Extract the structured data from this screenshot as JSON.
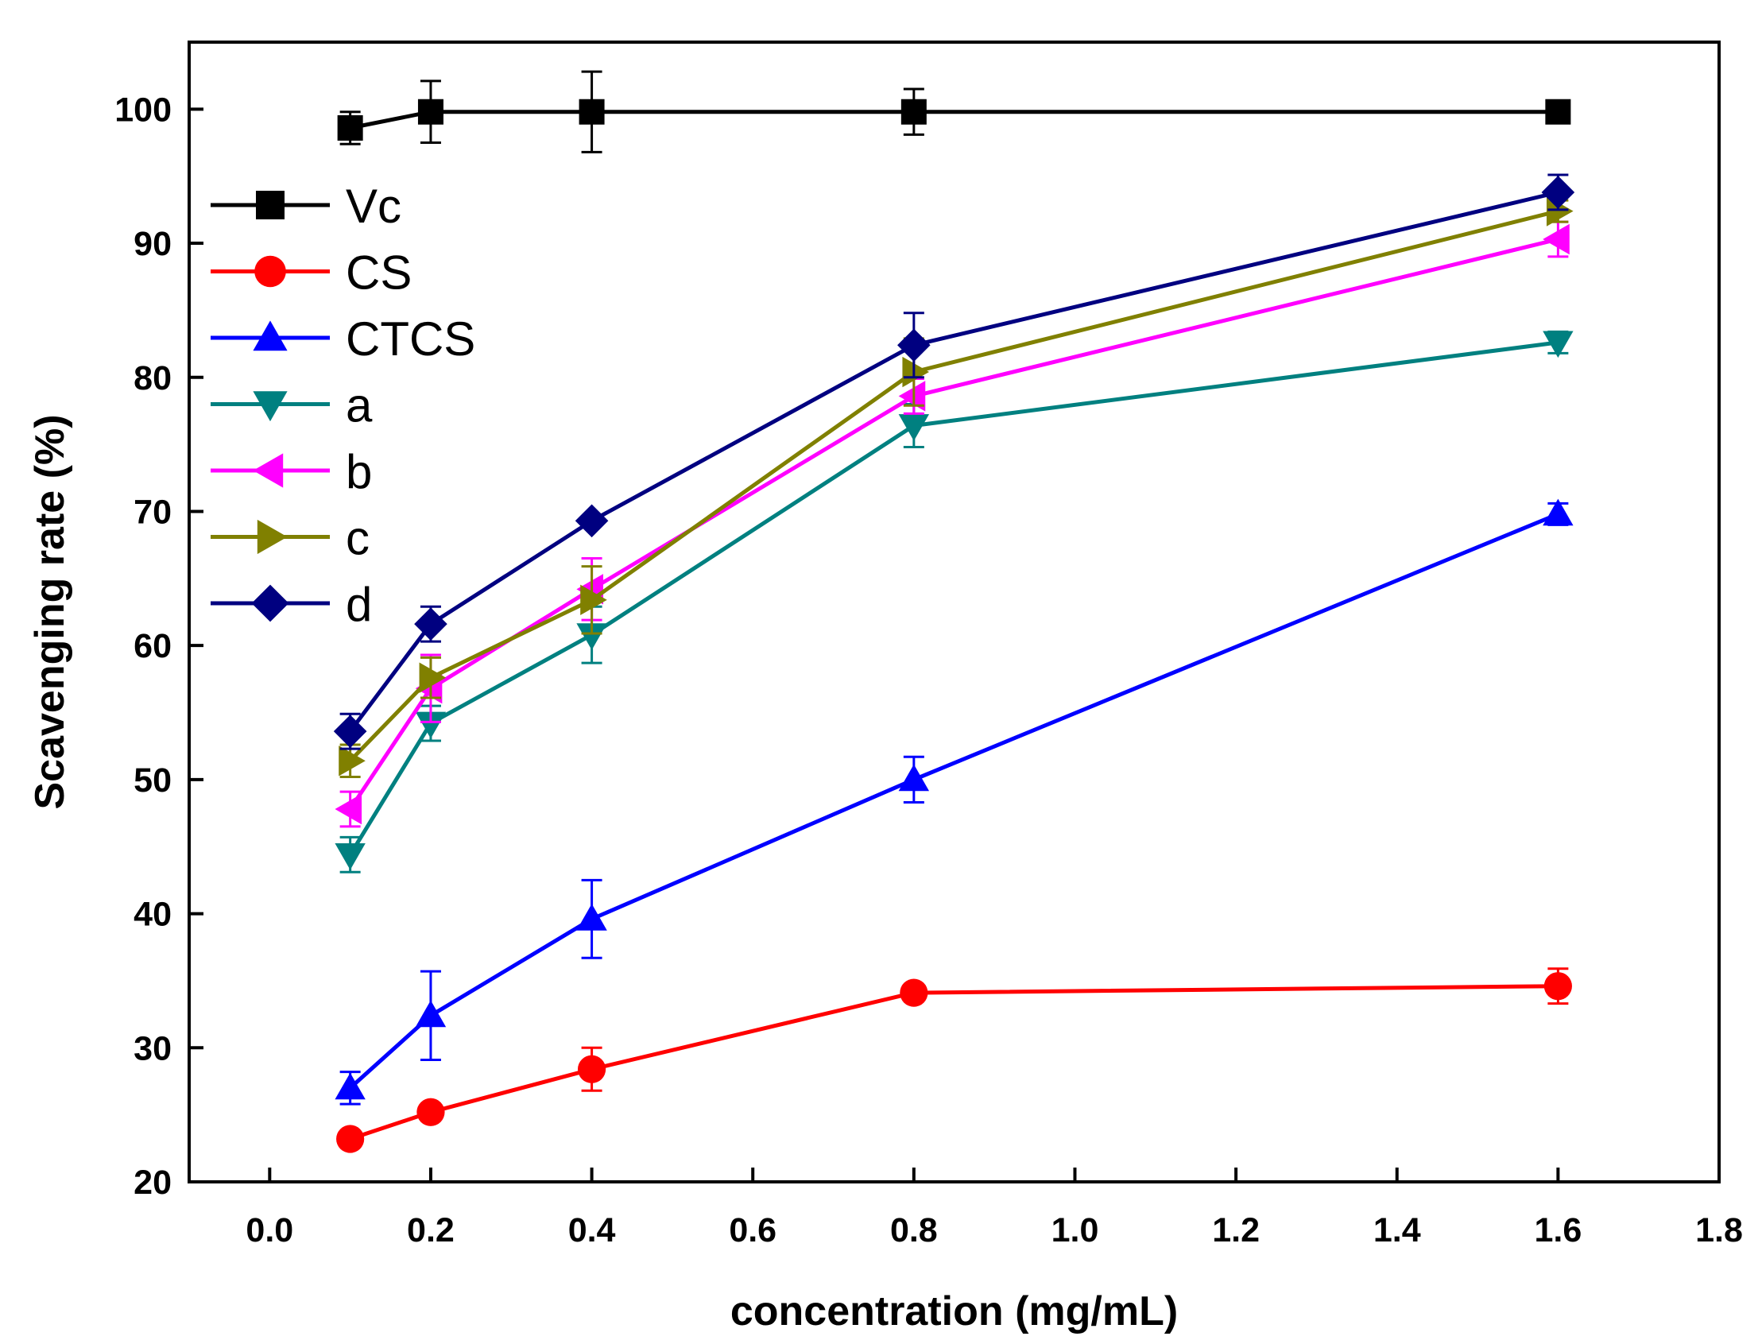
{
  "chart_data": {
    "type": "line",
    "title": "",
    "xlabel": "concentration (mg/mL)",
    "ylabel": "Scavenging rate (%)",
    "xlim": [
      -0.1,
      1.8
    ],
    "ylim": [
      20,
      105
    ],
    "xticks": [
      "0.0",
      "0.2",
      "0.4",
      "0.6",
      "0.8",
      "1.0",
      "1.2",
      "1.4",
      "1.6",
      "1.8"
    ],
    "xtick_values": [
      0.0,
      0.2,
      0.4,
      0.6,
      0.8,
      1.0,
      1.2,
      1.4,
      1.6,
      1.8
    ],
    "yticks": [
      "20",
      "30",
      "40",
      "50",
      "60",
      "70",
      "80",
      "90",
      "100"
    ],
    "ytick_values": [
      20,
      30,
      40,
      50,
      60,
      70,
      80,
      90,
      100
    ],
    "grid": false,
    "legend_position": "upper-left",
    "x": [
      0.1,
      0.2,
      0.4,
      0.8,
      1.6
    ],
    "series": [
      {
        "name": "Vc",
        "color": "#000000",
        "marker": "square",
        "values": [
          98.6,
          99.8,
          99.8,
          99.8,
          99.8
        ],
        "errors": [
          1.2,
          2.3,
          3.0,
          1.7,
          0
        ]
      },
      {
        "name": "CS",
        "color": "#ff0000",
        "marker": "circle",
        "values": [
          23.2,
          25.2,
          28.4,
          34.1,
          34.6
        ],
        "errors": [
          0,
          0,
          1.6,
          0.4,
          1.3
        ]
      },
      {
        "name": "CTCS",
        "color": "#0000ff",
        "marker": "triangle-up",
        "values": [
          27.0,
          32.4,
          39.6,
          50.0,
          69.8
        ],
        "errors": [
          1.2,
          3.3,
          2.9,
          1.7,
          0.8
        ]
      },
      {
        "name": "a",
        "color": "#008080",
        "marker": "triangle-down",
        "values": [
          44.4,
          54.2,
          60.8,
          76.4,
          82.6
        ],
        "errors": [
          1.3,
          1.3,
          2.1,
          1.6,
          0.8
        ]
      },
      {
        "name": "b",
        "color": "#ff00ff",
        "marker": "triangle-left",
        "values": [
          47.8,
          56.8,
          64.2,
          78.6,
          90.3
        ],
        "errors": [
          1.3,
          2.5,
          2.3,
          1.3,
          1.3
        ]
      },
      {
        "name": "c",
        "color": "#808000",
        "marker": "triangle-right",
        "values": [
          51.4,
          57.6,
          63.4,
          80.4,
          92.4
        ],
        "errors": [
          1.2,
          1.5,
          2.5,
          2.5,
          0.8
        ]
      },
      {
        "name": "d",
        "color": "#000080",
        "marker": "diamond",
        "values": [
          53.6,
          61.6,
          69.3,
          82.4,
          93.8
        ],
        "errors": [
          1.3,
          1.3,
          0,
          2.4,
          1.3
        ]
      }
    ]
  }
}
